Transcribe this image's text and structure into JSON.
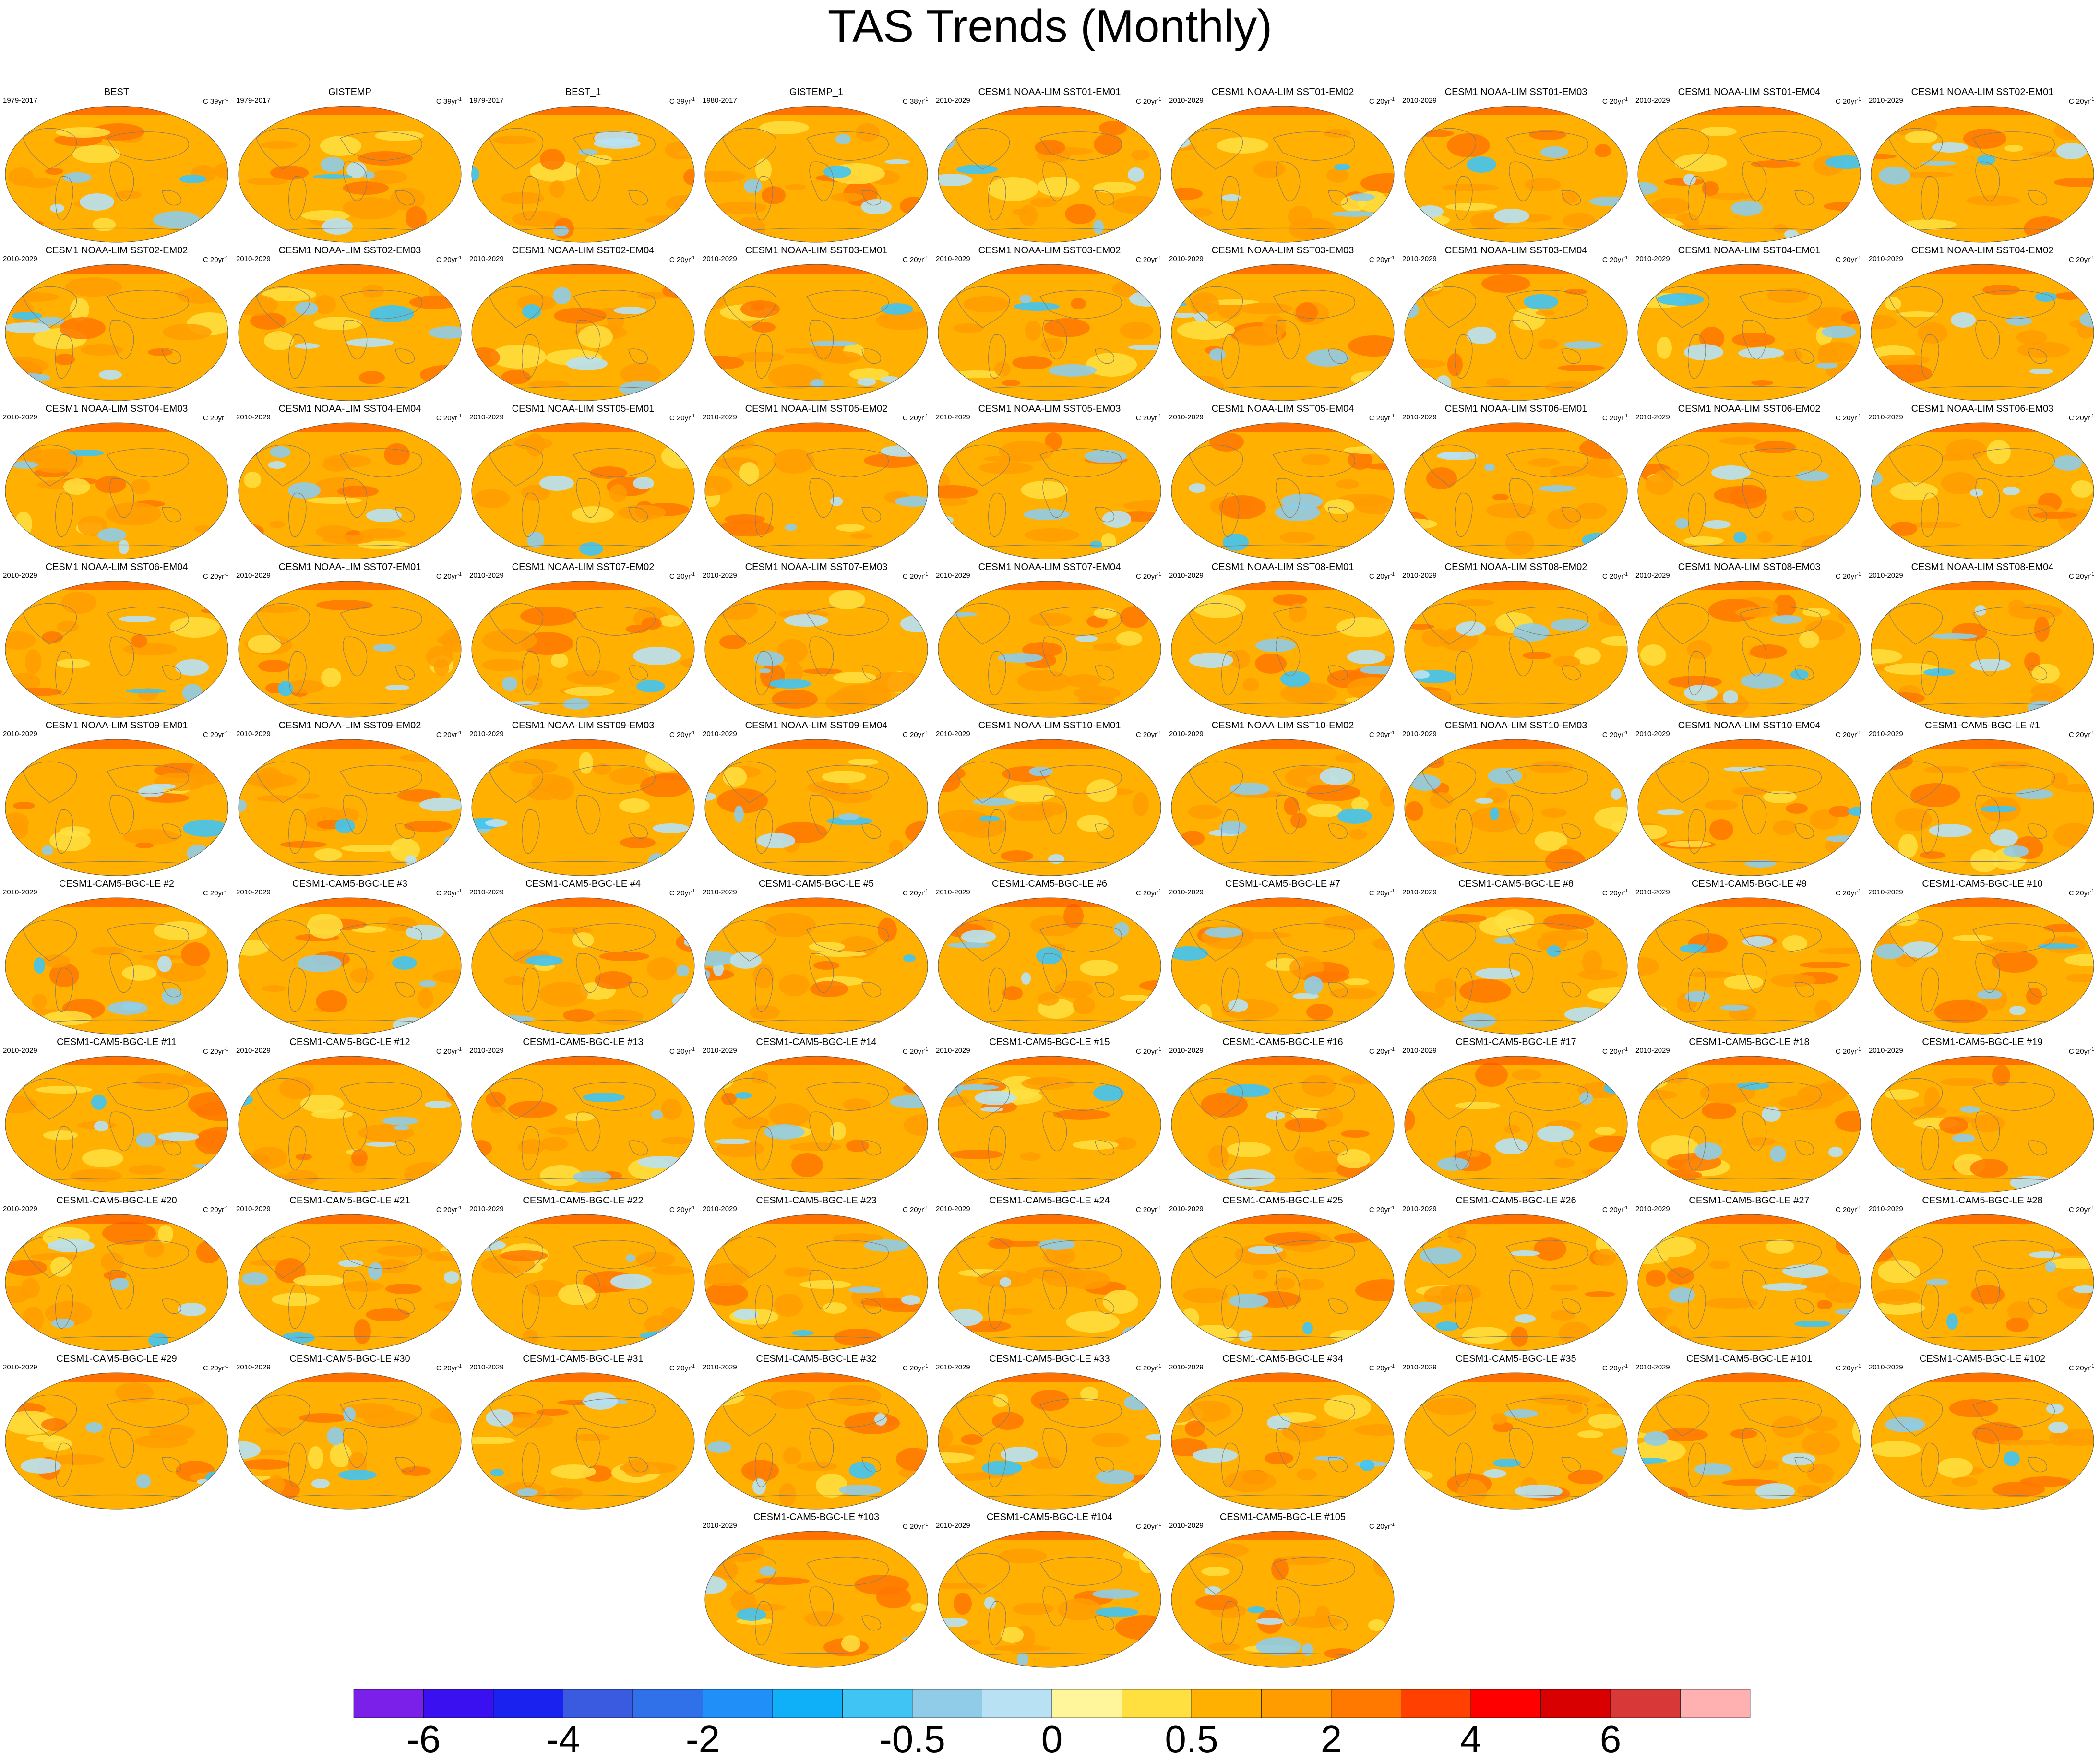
{
  "title": "TAS Trends (Monthly)",
  "colorbar": {
    "colors": [
      "#7b20e8",
      "#3a10f0",
      "#1a22f0",
      "#3a5ae0",
      "#3070e8",
      "#2090f8",
      "#10b0f8",
      "#40c4f4",
      "#90cce8",
      "#b8e2f4",
      "#fff59a",
      "#ffe040",
      "#ffb000",
      "#ff9c00",
      "#ff7800",
      "#ff4000",
      "#ff0000",
      "#d80000",
      "#d83838",
      "#ffb0b0"
    ],
    "labels": [
      "-6",
      "-4",
      "-2",
      "-0.5",
      "0",
      "0.5",
      "2",
      "4",
      "6"
    ]
  },
  "panels": [
    {
      "title": "BEST",
      "period": "1979-2017",
      "units": "C 39yr",
      "units_sup": "-1"
    },
    {
      "title": "GISTEMP",
      "period": "1979-2017",
      "units": "C 39yr",
      "units_sup": "-1"
    },
    {
      "title": "BEST_1",
      "period": "1979-2017",
      "units": "C 39yr",
      "units_sup": "-1"
    },
    {
      "title": "GISTEMP_1",
      "period": "1980-2017",
      "units": "C 38yr",
      "units_sup": "-1"
    },
    {
      "title": "CESM1 NOAA-LIM SST01-EM01",
      "period": "2010-2029",
      "units": "C 20yr",
      "units_sup": "-1"
    },
    {
      "title": "CESM1 NOAA-LIM SST01-EM02",
      "period": "2010-2029",
      "units": "C 20yr",
      "units_sup": "-1"
    },
    {
      "title": "CESM1 NOAA-LIM SST01-EM03",
      "period": "2010-2029",
      "units": "C 20yr",
      "units_sup": "-1"
    },
    {
      "title": "CESM1 NOAA-LIM SST01-EM04",
      "period": "2010-2029",
      "units": "C 20yr",
      "units_sup": "-1"
    },
    {
      "title": "CESM1 NOAA-LIM SST02-EM01",
      "period": "2010-2029",
      "units": "C 20yr",
      "units_sup": "-1"
    },
    {
      "title": "CESM1 NOAA-LIM SST02-EM02",
      "period": "2010-2029",
      "units": "C 20yr",
      "units_sup": "-1"
    },
    {
      "title": "CESM1 NOAA-LIM SST02-EM03",
      "period": "2010-2029",
      "units": "C 20yr",
      "units_sup": "-1"
    },
    {
      "title": "CESM1 NOAA-LIM SST02-EM04",
      "period": "2010-2029",
      "units": "C 20yr",
      "units_sup": "-1"
    },
    {
      "title": "CESM1 NOAA-LIM SST03-EM01",
      "period": "2010-2029",
      "units": "C 20yr",
      "units_sup": "-1"
    },
    {
      "title": "CESM1 NOAA-LIM SST03-EM02",
      "period": "2010-2029",
      "units": "C 20yr",
      "units_sup": "-1"
    },
    {
      "title": "CESM1 NOAA-LIM SST03-EM03",
      "period": "2010-2029",
      "units": "C 20yr",
      "units_sup": "-1"
    },
    {
      "title": "CESM1 NOAA-LIM SST03-EM04",
      "period": "2010-2029",
      "units": "C 20yr",
      "units_sup": "-1"
    },
    {
      "title": "CESM1 NOAA-LIM SST04-EM01",
      "period": "2010-2029",
      "units": "C 20yr",
      "units_sup": "-1"
    },
    {
      "title": "CESM1 NOAA-LIM SST04-EM02",
      "period": "2010-2029",
      "units": "C 20yr",
      "units_sup": "-1"
    },
    {
      "title": "CESM1 NOAA-LIM SST04-EM03",
      "period": "2010-2029",
      "units": "C 20yr",
      "units_sup": "-1"
    },
    {
      "title": "CESM1 NOAA-LIM SST04-EM04",
      "period": "2010-2029",
      "units": "C 20yr",
      "units_sup": "-1"
    },
    {
      "title": "CESM1 NOAA-LIM SST05-EM01",
      "period": "2010-2029",
      "units": "C 20yr",
      "units_sup": "-1"
    },
    {
      "title": "CESM1 NOAA-LIM SST05-EM02",
      "period": "2010-2029",
      "units": "C 20yr",
      "units_sup": "-1"
    },
    {
      "title": "CESM1 NOAA-LIM SST05-EM03",
      "period": "2010-2029",
      "units": "C 20yr",
      "units_sup": "-1"
    },
    {
      "title": "CESM1 NOAA-LIM SST05-EM04",
      "period": "2010-2029",
      "units": "C 20yr",
      "units_sup": "-1"
    },
    {
      "title": "CESM1 NOAA-LIM SST06-EM01",
      "period": "2010-2029",
      "units": "C 20yr",
      "units_sup": "-1"
    },
    {
      "title": "CESM1 NOAA-LIM SST06-EM02",
      "period": "2010-2029",
      "units": "C 20yr",
      "units_sup": "-1"
    },
    {
      "title": "CESM1 NOAA-LIM SST06-EM03",
      "period": "2010-2029",
      "units": "C 20yr",
      "units_sup": "-1"
    },
    {
      "title": "CESM1 NOAA-LIM SST06-EM04",
      "period": "2010-2029",
      "units": "C 20yr",
      "units_sup": "-1"
    },
    {
      "title": "CESM1 NOAA-LIM SST07-EM01",
      "period": "2010-2029",
      "units": "C 20yr",
      "units_sup": "-1"
    },
    {
      "title": "CESM1 NOAA-LIM SST07-EM02",
      "period": "2010-2029",
      "units": "C 20yr",
      "units_sup": "-1"
    },
    {
      "title": "CESM1 NOAA-LIM SST07-EM03",
      "period": "2010-2029",
      "units": "C 20yr",
      "units_sup": "-1"
    },
    {
      "title": "CESM1 NOAA-LIM SST07-EM04",
      "period": "2010-2029",
      "units": "C 20yr",
      "units_sup": "-1"
    },
    {
      "title": "CESM1 NOAA-LIM SST08-EM01",
      "period": "2010-2029",
      "units": "C 20yr",
      "units_sup": "-1"
    },
    {
      "title": "CESM1 NOAA-LIM SST08-EM02",
      "period": "2010-2029",
      "units": "C 20yr",
      "units_sup": "-1"
    },
    {
      "title": "CESM1 NOAA-LIM SST08-EM03",
      "period": "2010-2029",
      "units": "C 20yr",
      "units_sup": "-1"
    },
    {
      "title": "CESM1 NOAA-LIM SST08-EM04",
      "period": "2010-2029",
      "units": "C 20yr",
      "units_sup": "-1"
    },
    {
      "title": "CESM1 NOAA-LIM SST09-EM01",
      "period": "2010-2029",
      "units": "C 20yr",
      "units_sup": "-1"
    },
    {
      "title": "CESM1 NOAA-LIM SST09-EM02",
      "period": "2010-2029",
      "units": "C 20yr",
      "units_sup": "-1"
    },
    {
      "title": "CESM1 NOAA-LIM SST09-EM03",
      "period": "2010-2029",
      "units": "C 20yr",
      "units_sup": "-1"
    },
    {
      "title": "CESM1 NOAA-LIM SST09-EM04",
      "period": "2010-2029",
      "units": "C 20yr",
      "units_sup": "-1"
    },
    {
      "title": "CESM1 NOAA-LIM SST10-EM01",
      "period": "2010-2029",
      "units": "C 20yr",
      "units_sup": "-1"
    },
    {
      "title": "CESM1 NOAA-LIM SST10-EM02",
      "period": "2010-2029",
      "units": "C 20yr",
      "units_sup": "-1"
    },
    {
      "title": "CESM1 NOAA-LIM SST10-EM03",
      "period": "2010-2029",
      "units": "C 20yr",
      "units_sup": "-1"
    },
    {
      "title": "CESM1 NOAA-LIM SST10-EM04",
      "period": "2010-2029",
      "units": "C 20yr",
      "units_sup": "-1"
    },
    {
      "title": "CESM1-CAM5-BGC-LE #1",
      "period": "2010-2029",
      "units": "C 20yr",
      "units_sup": "-1"
    },
    {
      "title": "CESM1-CAM5-BGC-LE #2",
      "period": "2010-2029",
      "units": "C 20yr",
      "units_sup": "-1"
    },
    {
      "title": "CESM1-CAM5-BGC-LE #3",
      "period": "2010-2029",
      "units": "C 20yr",
      "units_sup": "-1"
    },
    {
      "title": "CESM1-CAM5-BGC-LE #4",
      "period": "2010-2029",
      "units": "C 20yr",
      "units_sup": "-1"
    },
    {
      "title": "CESM1-CAM5-BGC-LE #5",
      "period": "2010-2029",
      "units": "C 20yr",
      "units_sup": "-1"
    },
    {
      "title": "CESM1-CAM5-BGC-LE #6",
      "period": "2010-2029",
      "units": "C 20yr",
      "units_sup": "-1"
    },
    {
      "title": "CESM1-CAM5-BGC-LE #7",
      "period": "2010-2029",
      "units": "C 20yr",
      "units_sup": "-1"
    },
    {
      "title": "CESM1-CAM5-BGC-LE #8",
      "period": "2010-2029",
      "units": "C 20yr",
      "units_sup": "-1"
    },
    {
      "title": "CESM1-CAM5-BGC-LE #9",
      "period": "2010-2029",
      "units": "C 20yr",
      "units_sup": "-1"
    },
    {
      "title": "CESM1-CAM5-BGC-LE #10",
      "period": "2010-2029",
      "units": "C 20yr",
      "units_sup": "-1"
    },
    {
      "title": "CESM1-CAM5-BGC-LE #11",
      "period": "2010-2029",
      "units": "C 20yr",
      "units_sup": "-1"
    },
    {
      "title": "CESM1-CAM5-BGC-LE #12",
      "period": "2010-2029",
      "units": "C 20yr",
      "units_sup": "-1"
    },
    {
      "title": "CESM1-CAM5-BGC-LE #13",
      "period": "2010-2029",
      "units": "C 20yr",
      "units_sup": "-1"
    },
    {
      "title": "CESM1-CAM5-BGC-LE #14",
      "period": "2010-2029",
      "units": "C 20yr",
      "units_sup": "-1"
    },
    {
      "title": "CESM1-CAM5-BGC-LE #15",
      "period": "2010-2029",
      "units": "C 20yr",
      "units_sup": "-1"
    },
    {
      "title": "CESM1-CAM5-BGC-LE #16",
      "period": "2010-2029",
      "units": "C 20yr",
      "units_sup": "-1"
    },
    {
      "title": "CESM1-CAM5-BGC-LE #17",
      "period": "2010-2029",
      "units": "C 20yr",
      "units_sup": "-1"
    },
    {
      "title": "CESM1-CAM5-BGC-LE #18",
      "period": "2010-2029",
      "units": "C 20yr",
      "units_sup": "-1"
    },
    {
      "title": "CESM1-CAM5-BGC-LE #19",
      "period": "2010-2029",
      "units": "C 20yr",
      "units_sup": "-1"
    },
    {
      "title": "CESM1-CAM5-BGC-LE #20",
      "period": "2010-2029",
      "units": "C 20yr",
      "units_sup": "-1"
    },
    {
      "title": "CESM1-CAM5-BGC-LE #21",
      "period": "2010-2029",
      "units": "C 20yr",
      "units_sup": "-1"
    },
    {
      "title": "CESM1-CAM5-BGC-LE #22",
      "period": "2010-2029",
      "units": "C 20yr",
      "units_sup": "-1"
    },
    {
      "title": "CESM1-CAM5-BGC-LE #23",
      "period": "2010-2029",
      "units": "C 20yr",
      "units_sup": "-1"
    },
    {
      "title": "CESM1-CAM5-BGC-LE #24",
      "period": "2010-2029",
      "units": "C 20yr",
      "units_sup": "-1"
    },
    {
      "title": "CESM1-CAM5-BGC-LE #25",
      "period": "2010-2029",
      "units": "C 20yr",
      "units_sup": "-1"
    },
    {
      "title": "CESM1-CAM5-BGC-LE #26",
      "period": "2010-2029",
      "units": "C 20yr",
      "units_sup": "-1"
    },
    {
      "title": "CESM1-CAM5-BGC-LE #27",
      "period": "2010-2029",
      "units": "C 20yr",
      "units_sup": "-1"
    },
    {
      "title": "CESM1-CAM5-BGC-LE #28",
      "period": "2010-2029",
      "units": "C 20yr",
      "units_sup": "-1"
    },
    {
      "title": "CESM1-CAM5-BGC-LE #29",
      "period": "2010-2029",
      "units": "C 20yr",
      "units_sup": "-1"
    },
    {
      "title": "CESM1-CAM5-BGC-LE #30",
      "period": "2010-2029",
      "units": "C 20yr",
      "units_sup": "-1"
    },
    {
      "title": "CESM1-CAM5-BGC-LE #31",
      "period": "2010-2029",
      "units": "C 20yr",
      "units_sup": "-1"
    },
    {
      "title": "CESM1-CAM5-BGC-LE #32",
      "period": "2010-2029",
      "units": "C 20yr",
      "units_sup": "-1"
    },
    {
      "title": "CESM1-CAM5-BGC-LE #33",
      "period": "2010-2029",
      "units": "C 20yr",
      "units_sup": "-1"
    },
    {
      "title": "CESM1-CAM5-BGC-LE #34",
      "period": "2010-2029",
      "units": "C 20yr",
      "units_sup": "-1"
    },
    {
      "title": "CESM1-CAM5-BGC-LE #35",
      "period": "2010-2029",
      "units": "C 20yr",
      "units_sup": "-1"
    },
    {
      "title": "CESM1-CAM5-BGC-LE #101",
      "period": "2010-2029",
      "units": "C 20yr",
      "units_sup": "-1"
    },
    {
      "title": "CESM1-CAM5-BGC-LE #102",
      "period": "2010-2029",
      "units": "C 20yr",
      "units_sup": "-1"
    },
    {
      "title": "CESM1-CAM5-BGC-LE #103",
      "period": "2010-2029",
      "units": "C 20yr",
      "units_sup": "-1"
    },
    {
      "title": "CESM1-CAM5-BGC-LE #104",
      "period": "2010-2029",
      "units": "C 20yr",
      "units_sup": "-1"
    },
    {
      "title": "CESM1-CAM5-BGC-LE #105",
      "period": "2010-2029",
      "units": "C 20yr",
      "units_sup": "-1"
    }
  ]
}
